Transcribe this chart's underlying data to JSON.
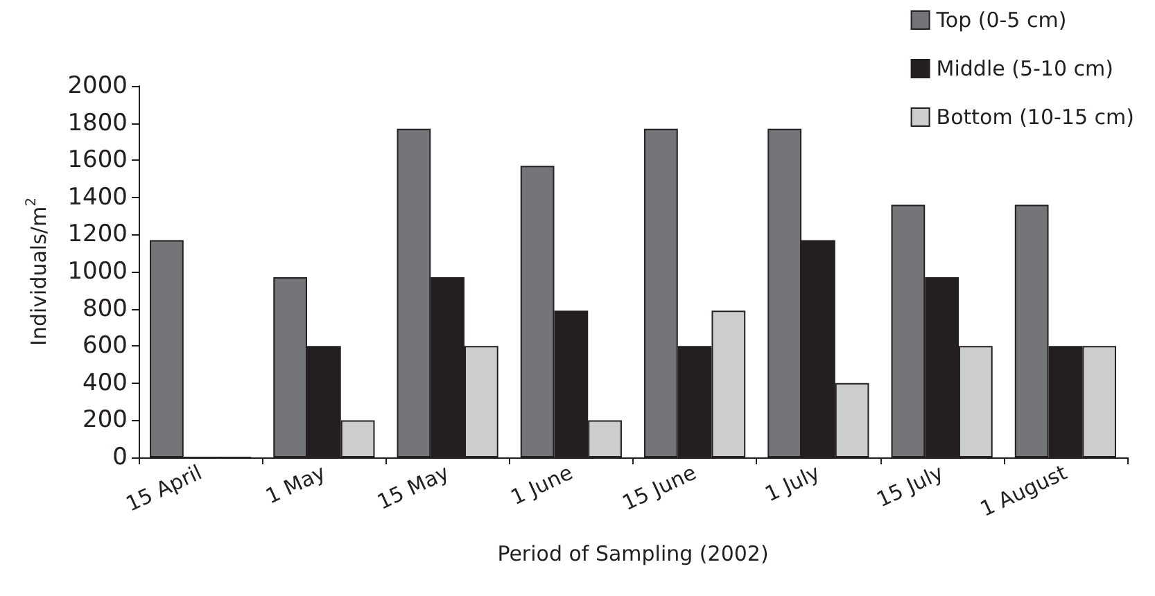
{
  "chart_data": {
    "type": "bar",
    "xlabel": "Period of Sampling (2002)",
    "ylabel": "Individuals/m$^{2}$",
    "categories": [
      "15 April",
      "1 May",
      "15 May",
      "1 June",
      "15 June",
      "1 July",
      "15 July",
      "1 August"
    ],
    "series": [
      {
        "name": "Top (0-5 cm)",
        "color": "#747579",
        "values": [
          1170,
          970,
          1770,
          1570,
          1770,
          1770,
          1360,
          1360
        ]
      },
      {
        "name": "Middle (5-10 cm)",
        "color": "#231f20",
        "values": [
          0,
          600,
          970,
          790,
          600,
          1170,
          970,
          600
        ]
      },
      {
        "name": "Bottom (10-15 cm)",
        "color": "#cccdcf",
        "values": [
          0,
          200,
          600,
          200,
          790,
          400,
          600,
          600
        ]
      }
    ],
    "ylim": [
      0,
      2000
    ],
    "yticks": [
      0,
      200,
      400,
      600,
      800,
      1000,
      1200,
      1400,
      1600,
      1800,
      2000
    ],
    "grid": false,
    "legend": "top right"
  }
}
